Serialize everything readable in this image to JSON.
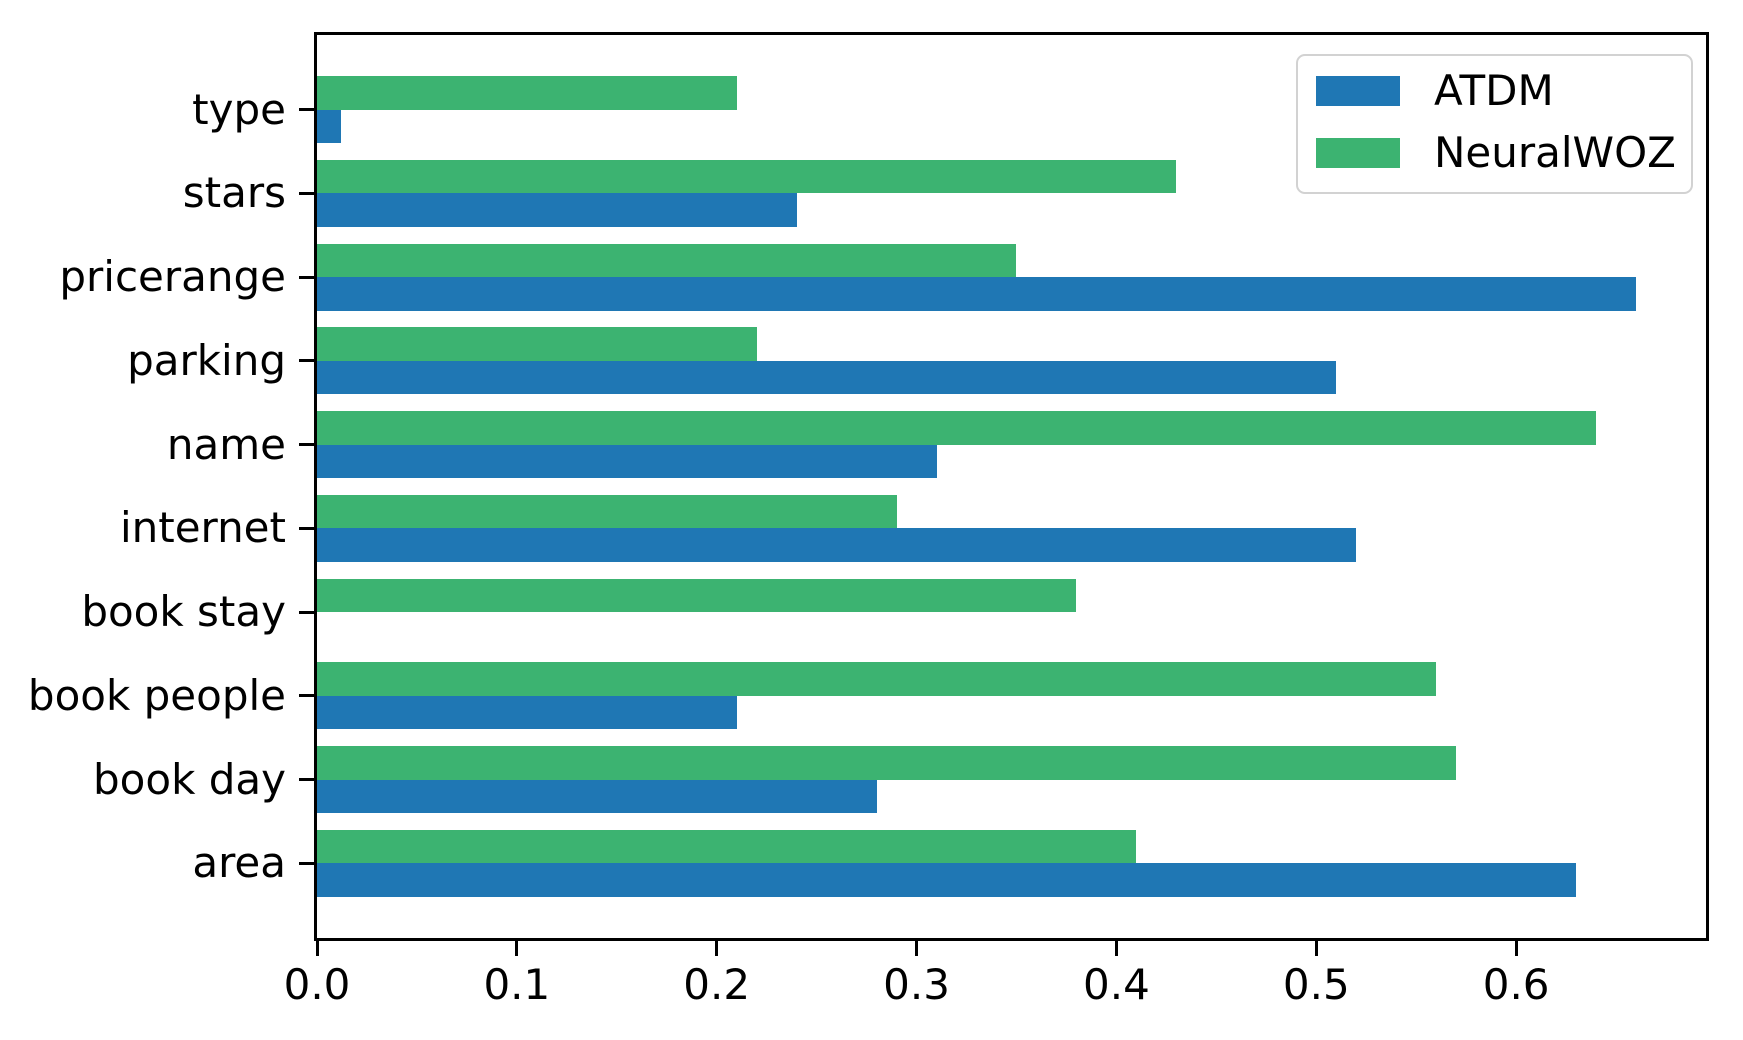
{
  "chart_data": {
    "type": "bar",
    "orientation": "horizontal",
    "title": "",
    "xlabel": "",
    "ylabel": "",
    "categories": [
      "type",
      "stars",
      "pricerange",
      "parking",
      "name",
      "internet",
      "book stay",
      "book people",
      "book day",
      "area"
    ],
    "series": [
      {
        "name": "ATDM",
        "color": "#1f77b4",
        "values": [
          0.012,
          0.24,
          0.66,
          0.51,
          0.31,
          0.52,
          0.0,
          0.21,
          0.28,
          0.63
        ]
      },
      {
        "name": "NeuralWOZ",
        "color": "#3cb371",
        "values": [
          0.21,
          0.43,
          0.35,
          0.22,
          0.64,
          0.29,
          0.38,
          0.56,
          0.57,
          0.41
        ]
      }
    ],
    "xticks": [
      "0.0",
      "0.1",
      "0.2",
      "0.3",
      "0.4",
      "0.5",
      "0.6"
    ],
    "xlim": [
      0,
      0.695
    ],
    "grid": false,
    "legend": {
      "position": "upper-right",
      "entries": [
        "ATDM",
        "NeuralWOZ"
      ]
    }
  },
  "colors": {
    "axis": "#000000",
    "legend_border": "#d2d2d2",
    "background": "#ffffff",
    "atdm_blue": "#1f77b4",
    "neuralwoz_green": "#3cb371"
  }
}
